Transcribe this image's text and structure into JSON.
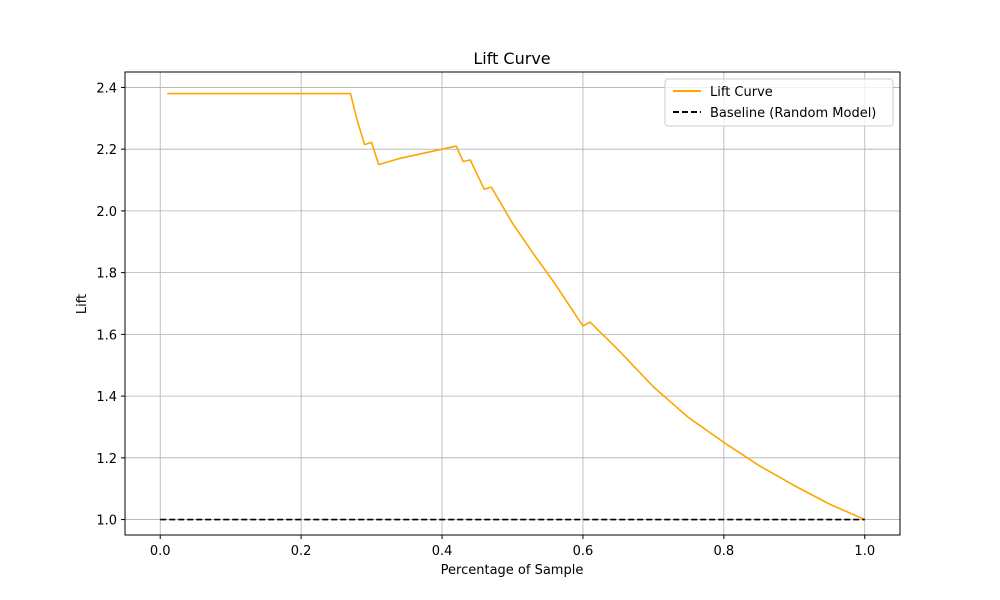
{
  "chart_data": {
    "type": "line",
    "title": "Lift Curve",
    "xlabel": "Percentage of Sample",
    "ylabel": "Lift",
    "xlim": [
      -0.05,
      1.05
    ],
    "ylim": [
      0.95,
      2.45
    ],
    "xticks": [
      0.0,
      0.2,
      0.4,
      0.6,
      0.8,
      1.0
    ],
    "xtick_labels": [
      "0.0",
      "0.2",
      "0.4",
      "0.6",
      "0.8",
      "1.0"
    ],
    "yticks": [
      1.0,
      1.2,
      1.4,
      1.6,
      1.8,
      2.0,
      2.2,
      2.4
    ],
    "ytick_labels": [
      "1.0",
      "1.2",
      "1.4",
      "1.6",
      "1.8",
      "2.0",
      "2.2",
      "2.4"
    ],
    "grid": true,
    "legend_position": "top-right",
    "series": [
      {
        "name": "Lift Curve",
        "color": "#ffa500",
        "style": "solid",
        "points": [
          [
            0.01,
            2.38
          ],
          [
            0.27,
            2.38
          ],
          [
            0.28,
            2.29
          ],
          [
            0.29,
            2.215
          ],
          [
            0.3,
            2.222
          ],
          [
            0.31,
            2.15
          ],
          [
            0.34,
            2.17
          ],
          [
            0.37,
            2.185
          ],
          [
            0.4,
            2.2
          ],
          [
            0.42,
            2.21
          ],
          [
            0.43,
            2.16
          ],
          [
            0.44,
            2.165
          ],
          [
            0.46,
            2.07
          ],
          [
            0.47,
            2.077
          ],
          [
            0.5,
            1.96
          ],
          [
            0.53,
            1.86
          ],
          [
            0.56,
            1.765
          ],
          [
            0.6,
            1.627
          ],
          [
            0.61,
            1.64
          ],
          [
            0.65,
            1.55
          ],
          [
            0.7,
            1.43
          ],
          [
            0.75,
            1.33
          ],
          [
            0.8,
            1.25
          ],
          [
            0.85,
            1.175
          ],
          [
            0.9,
            1.11
          ],
          [
            0.95,
            1.05
          ],
          [
            1.0,
            1.0
          ]
        ]
      },
      {
        "name": "Baseline (Random Model)",
        "color": "#000000",
        "style": "dashed",
        "points": [
          [
            0.0,
            1.0
          ],
          [
            1.0,
            1.0
          ]
        ]
      }
    ]
  }
}
